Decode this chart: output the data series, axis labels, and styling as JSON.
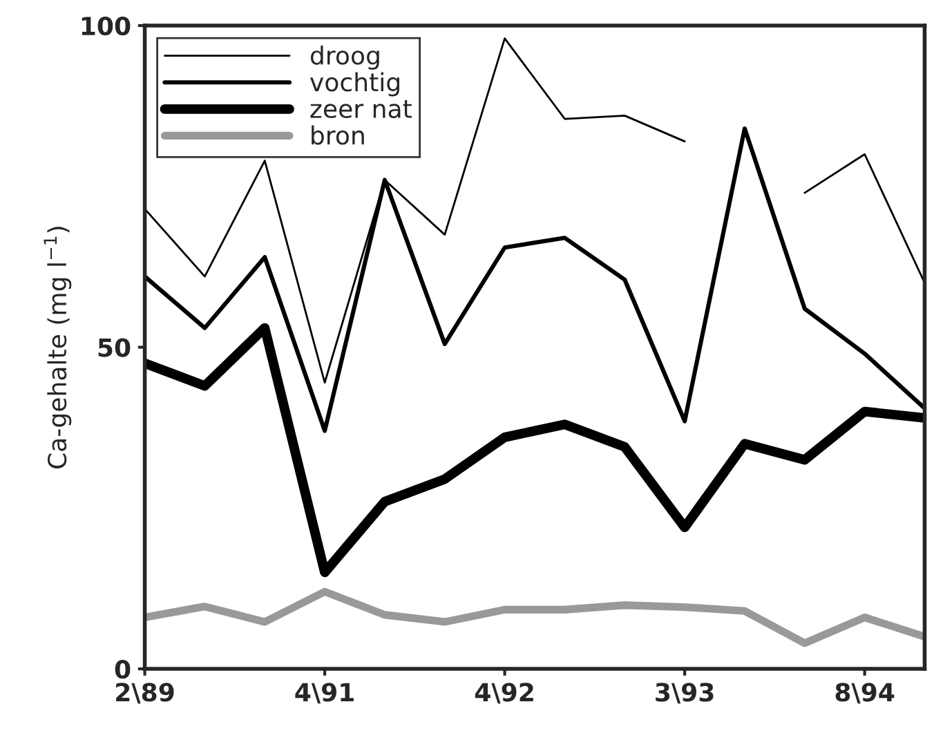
{
  "chart_data": {
    "type": "line",
    "ylabel": "Ca-gehalte (mg l$^{−1}$)",
    "categories": [
      "2\\89",
      null,
      null,
      "4\\91",
      null,
      null,
      "4\\92",
      null,
      null,
      "3\\93",
      null,
      null,
      "8\\94",
      null
    ],
    "series": [
      {
        "name": "droog",
        "color": "#000000",
        "values": [
          71.5,
          61,
          79,
          44.5,
          76,
          67.5,
          98,
          85.5,
          86,
          82,
          null,
          74,
          80,
          60
        ]
      },
      {
        "name": "vochtig",
        "color": "#000000",
        "values": [
          61,
          53,
          64,
          37,
          76,
          50.5,
          65.5,
          67,
          60.5,
          38.5,
          84,
          56,
          49,
          40.5
        ]
      },
      {
        "name": "zeer nat",
        "color": "#000000",
        "values": [
          47.5,
          44,
          53,
          15,
          26,
          29.5,
          36,
          38,
          34.5,
          22,
          35,
          32.5,
          40,
          39
        ]
      },
      {
        "name": "bron",
        "color": "#999999",
        "values": [
          8,
          9.7,
          7.3,
          12,
          8.4,
          7.3,
          9.2,
          9.2,
          9.9,
          9.6,
          9,
          4,
          8,
          5
        ]
      }
    ],
    "ylim": [
      0,
      100
    ],
    "yticks": [
      0,
      50,
      100
    ],
    "grid": false,
    "legend": "top left",
    "marker": "none",
    "line_style": "solid"
  }
}
